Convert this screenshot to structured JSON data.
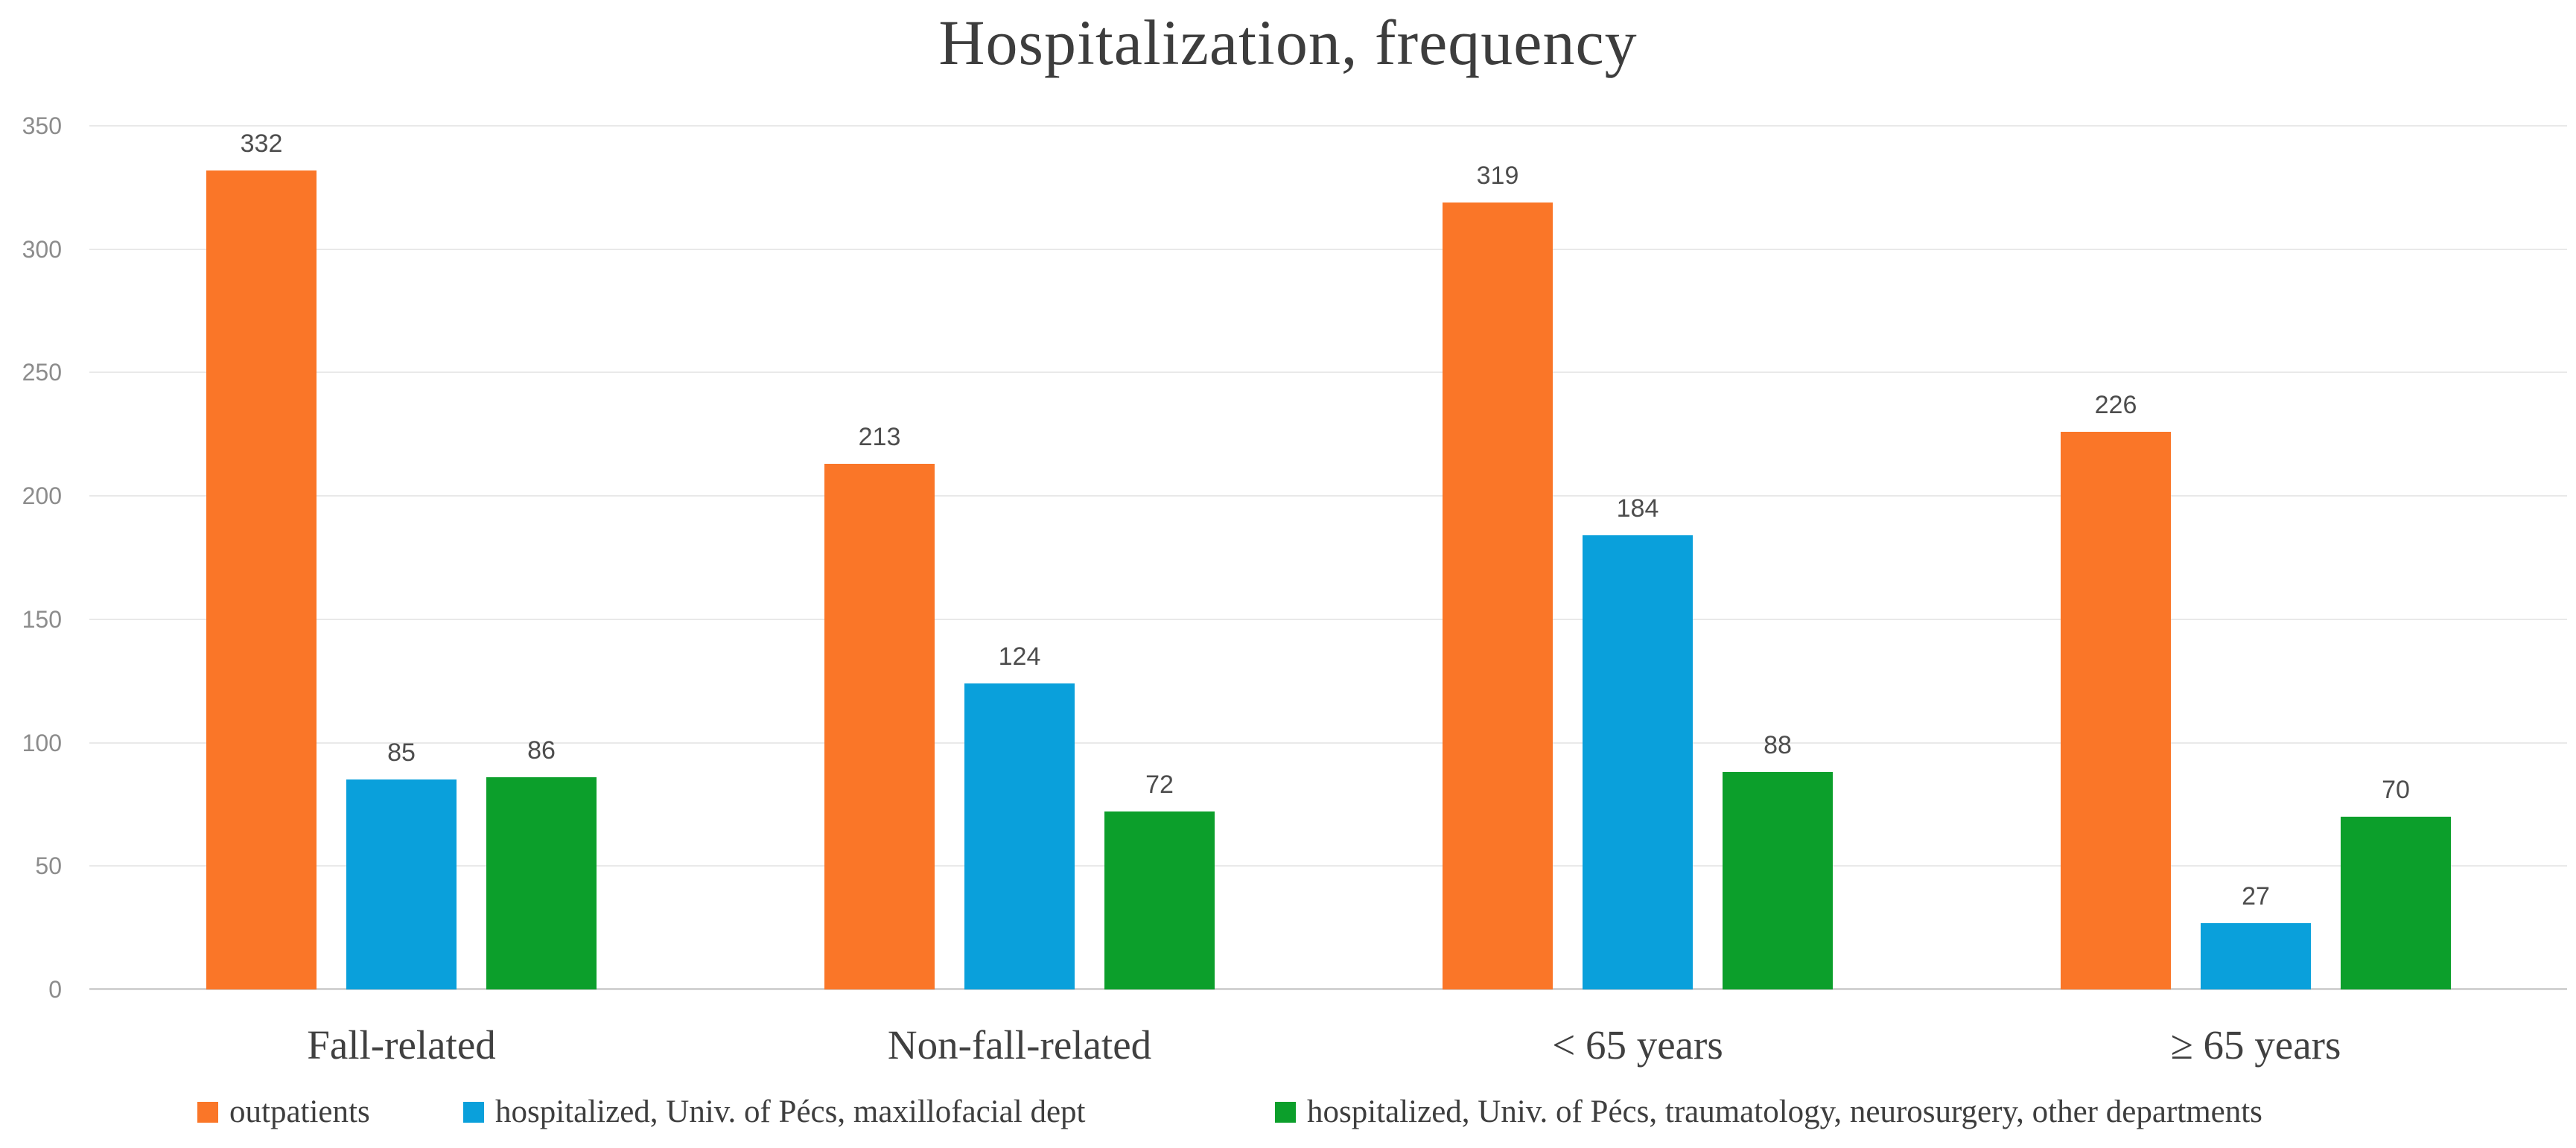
{
  "title": "Hospitalization, frequency",
  "chart_data": {
    "type": "bar",
    "title": "Hospitalization, frequency",
    "categories": [
      "Fall-related",
      "Non-fall-related",
      "< 65 years",
      "≥ 65 years"
    ],
    "series": [
      {
        "name": "outpatients",
        "color": "#FA7628",
        "values": [
          332,
          213,
          319,
          226
        ]
      },
      {
        "name": "hospitalized, Univ. of Pécs, maxillofacial dept",
        "color": "#0AA0DB",
        "values": [
          85,
          124,
          184,
          27
        ]
      },
      {
        "name": "hospitalized, Univ. of Pécs, traumatology, neurosurgery, other departments",
        "color": "#0C9F2B",
        "values": [
          86,
          72,
          88,
          70
        ]
      }
    ],
    "y_axis": {
      "min": 0,
      "max": 350,
      "tick_step": 50,
      "ticks": [
        350,
        300,
        250,
        200,
        150,
        100,
        50,
        0
      ]
    },
    "grid": true,
    "data_labels": true,
    "legend_position": "bottom",
    "xlabel": "",
    "ylabel": ""
  },
  "style": {
    "gridline_color": "#e9e9e9",
    "baseline_color": "#d2d2d2",
    "axis_label_color": "#8c8c8c",
    "value_label_color": "#4d4d4d",
    "title_color": "#3d3d3d",
    "background": "#ffffff"
  }
}
